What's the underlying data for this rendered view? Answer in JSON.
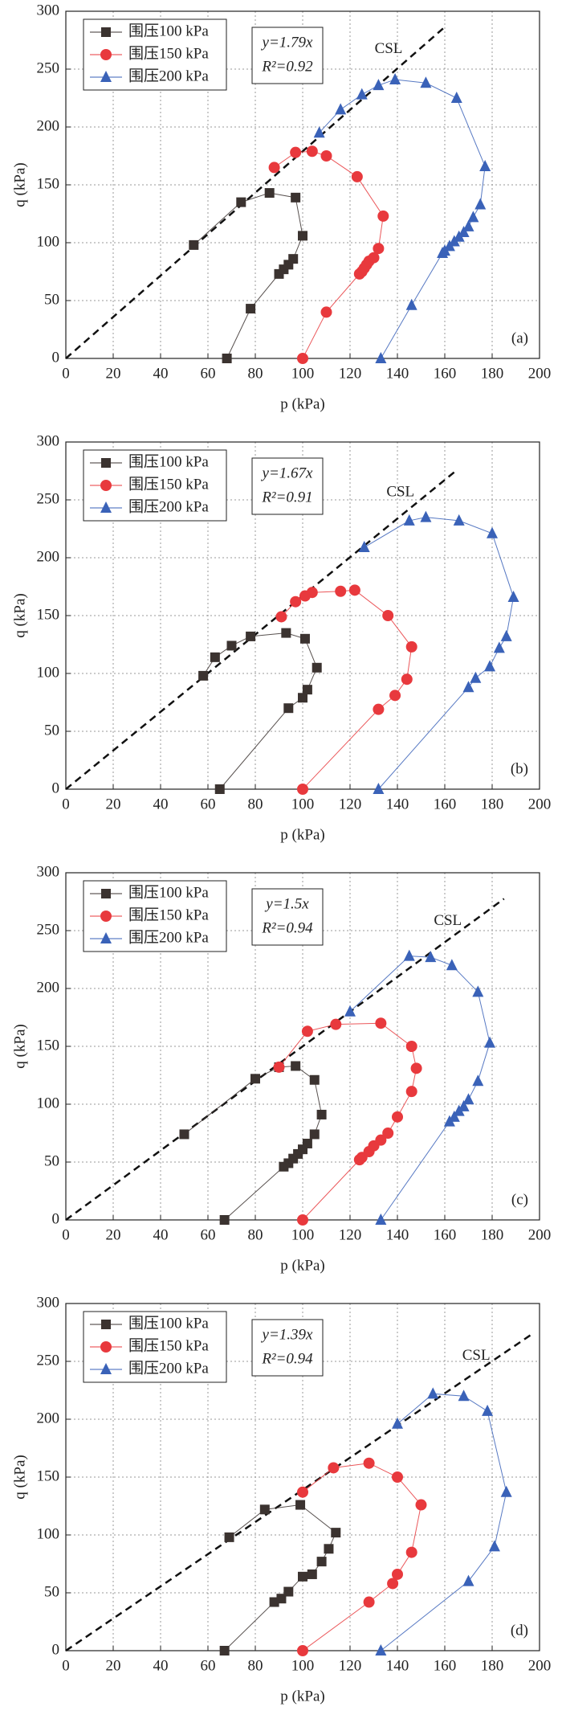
{
  "chart_data": [
    {
      "type": "line",
      "panel_label": "(a)",
      "xlabel": "p (kPa)",
      "ylabel": "q (kPa)",
      "equation": "y=1.79x",
      "r2": "R²=0.92",
      "csl_label": "CSL",
      "xlim": [
        0,
        200
      ],
      "ylim": [
        0,
        300
      ],
      "xticks": [
        0,
        20,
        40,
        60,
        80,
        100,
        120,
        140,
        160,
        180,
        200
      ],
      "yticks": [
        0,
        50,
        100,
        150,
        200,
        250,
        300
      ],
      "grid": true,
      "legend": "upper left",
      "csl": {
        "x": [
          0,
          160
        ],
        "values": [
          0,
          286.4
        ]
      },
      "series": [
        {
          "name": "围压100 kPa",
          "color": "#3b3330",
          "marker": "square",
          "x": [
            68,
            78,
            90,
            92,
            94,
            96,
            100,
            97,
            86,
            74,
            54
          ],
          "values": [
            0,
            43,
            73,
            77,
            81,
            86,
            106,
            139,
            143,
            135,
            98
          ]
        },
        {
          "name": "围压150 kPa",
          "color": "#e8393d",
          "marker": "circle",
          "x": [
            100,
            110,
            124,
            125,
            126,
            127,
            128,
            130,
            132,
            134,
            123,
            110,
            104,
            97,
            88
          ],
          "values": [
            0,
            40,
            73,
            75,
            78,
            81,
            84,
            87,
            95,
            123,
            157,
            175,
            179,
            178,
            165
          ]
        },
        {
          "name": "围压200 kPa",
          "color": "#3a62b8",
          "marker": "triangle",
          "x": [
            133,
            146,
            159,
            160,
            162,
            164,
            166,
            168,
            170,
            172,
            175,
            177,
            165,
            152,
            139,
            132,
            125,
            116,
            107
          ],
          "values": [
            0,
            46,
            91,
            93,
            97,
            101,
            105,
            109,
            114,
            122,
            133,
            166,
            225,
            238,
            241,
            236,
            228,
            215,
            195
          ]
        }
      ]
    },
    {
      "type": "line",
      "panel_label": "(b)",
      "xlabel": "p (kPa)",
      "ylabel": "q (kPa)",
      "equation": "y=1.67x",
      "r2": "R²=0.91",
      "csl_label": "CSL",
      "xlim": [
        0,
        200
      ],
      "ylim": [
        0,
        300
      ],
      "xticks": [
        0,
        20,
        40,
        60,
        80,
        100,
        120,
        140,
        160,
        180,
        200
      ],
      "yticks": [
        0,
        50,
        100,
        150,
        200,
        250,
        300
      ],
      "grid": true,
      "legend": "upper left",
      "csl": {
        "x": [
          0,
          165
        ],
        "values": [
          0,
          275.6
        ]
      },
      "series": [
        {
          "name": "围压100 kPa",
          "color": "#3b3330",
          "marker": "square",
          "x": [
            65,
            94,
            100,
            102,
            106,
            101,
            93,
            78,
            70,
            63,
            58
          ],
          "values": [
            0,
            70,
            79,
            86,
            105,
            130,
            135,
            132,
            124,
            114,
            98
          ]
        },
        {
          "name": "围压150 kPa",
          "color": "#e8393d",
          "marker": "circle",
          "x": [
            100,
            132,
            139,
            144,
            146,
            136,
            122,
            116,
            104,
            101,
            97,
            91
          ],
          "values": [
            0,
            69,
            81,
            95,
            123,
            150,
            172,
            171,
            170,
            167,
            162,
            149
          ]
        },
        {
          "name": "围压200 kPa",
          "color": "#3a62b8",
          "marker": "triangle",
          "x": [
            132,
            170,
            173,
            179,
            183,
            186,
            189,
            180,
            166,
            152,
            145,
            126
          ],
          "values": [
            0,
            88,
            96,
            106,
            122,
            132,
            166,
            221,
            232,
            235,
            232,
            209
          ]
        }
      ]
    },
    {
      "type": "line",
      "panel_label": "(c)",
      "xlabel": "p (kPa)",
      "ylabel": "q (kPa)",
      "equation": "y=1.5x",
      "r2": "R²=0.94",
      "csl_label": "CSL",
      "xlim": [
        0,
        200
      ],
      "ylim": [
        0,
        300
      ],
      "xticks": [
        0,
        20,
        40,
        60,
        80,
        100,
        120,
        140,
        160,
        180,
        200
      ],
      "yticks": [
        0,
        50,
        100,
        150,
        200,
        250,
        300
      ],
      "grid": true,
      "legend": "upper left",
      "csl": {
        "x": [
          0,
          185
        ],
        "values": [
          0,
          277.5
        ]
      },
      "series": [
        {
          "name": "围压100 kPa",
          "color": "#3b3330",
          "marker": "square",
          "x": [
            67,
            92,
            94,
            96,
            98,
            100,
            102,
            105,
            108,
            105,
            97,
            90,
            80,
            50
          ],
          "values": [
            0,
            46,
            49,
            53,
            57,
            61,
            66,
            74,
            91,
            121,
            133,
            132,
            122,
            74
          ]
        },
        {
          "name": "围压150 kPa",
          "color": "#e8393d",
          "marker": "circle",
          "x": [
            100,
            124,
            125,
            128,
            130,
            133,
            136,
            140,
            146,
            148,
            146,
            133,
            114,
            102,
            90
          ],
          "values": [
            0,
            52,
            54,
            59,
            64,
            69,
            75,
            89,
            111,
            131,
            150,
            170,
            169,
            163,
            132
          ]
        },
        {
          "name": "围压200 kPa",
          "color": "#3a62b8",
          "marker": "triangle",
          "x": [
            133,
            162,
            164,
            166,
            168,
            170,
            174,
            179,
            174,
            163,
            154,
            145,
            120
          ],
          "values": [
            0,
            85,
            89,
            94,
            98,
            104,
            120,
            153,
            197,
            220,
            227,
            228,
            180
          ]
        }
      ]
    },
    {
      "type": "line",
      "panel_label": "(d)",
      "xlabel": "p (kPa)",
      "ylabel": "q (kPa)",
      "equation": "y=1.39x",
      "r2": "R²=0.94",
      "csl_label": "CSL",
      "xlim": [
        0,
        200
      ],
      "ylim": [
        0,
        300
      ],
      "xticks": [
        0,
        20,
        40,
        60,
        80,
        100,
        120,
        140,
        160,
        180,
        200
      ],
      "yticks": [
        0,
        50,
        100,
        150,
        200,
        250,
        300
      ],
      "grid": true,
      "legend": "upper left",
      "csl": {
        "x": [
          0,
          197
        ],
        "values": [
          0,
          273.8
        ]
      },
      "series": [
        {
          "name": "围压100 kPa",
          "color": "#3b3330",
          "marker": "square",
          "x": [
            67,
            88,
            91,
            94,
            100,
            104,
            108,
            111,
            114,
            99,
            84,
            69
          ],
          "values": [
            0,
            42,
            45,
            51,
            64,
            66,
            77,
            88,
            102,
            126,
            122,
            98
          ]
        },
        {
          "name": "围压150 kPa",
          "color": "#e8393d",
          "marker": "circle",
          "x": [
            100,
            128,
            138,
            140,
            146,
            150,
            140,
            128,
            113,
            100
          ],
          "values": [
            0,
            42,
            58,
            66,
            85,
            126,
            150,
            162,
            158,
            137
          ]
        },
        {
          "name": "围压200 kPa",
          "color": "#3a62b8",
          "marker": "triangle",
          "x": [
            133,
            170,
            181,
            186,
            178,
            168,
            155,
            140
          ],
          "values": [
            0,
            60,
            90,
            137,
            207,
            220,
            222,
            196
          ]
        }
      ]
    }
  ]
}
